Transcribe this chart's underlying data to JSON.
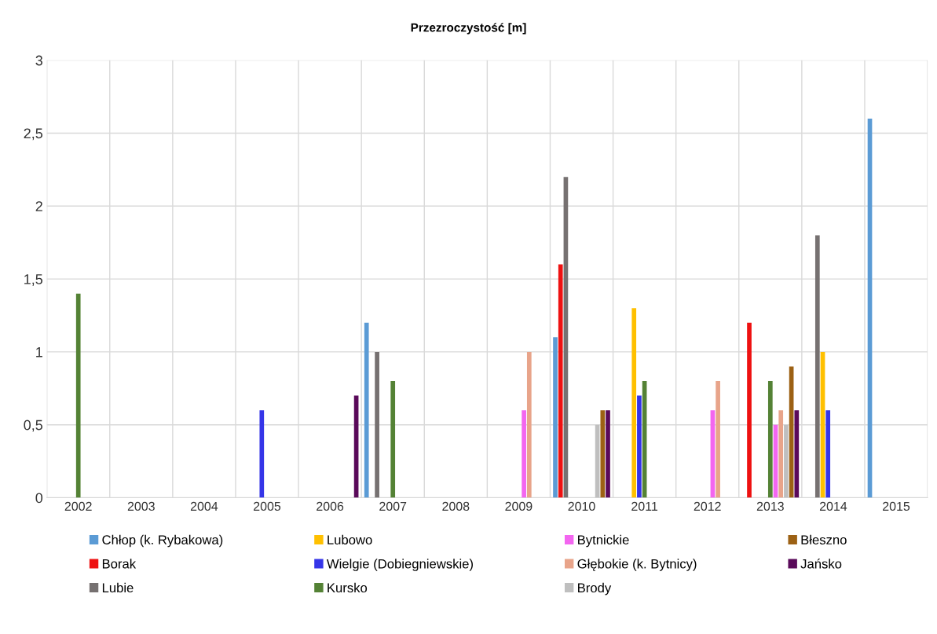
{
  "chart_data": {
    "type": "bar",
    "title": "Przezroczystość [m]",
    "categories": [
      "2002",
      "2003",
      "2004",
      "2005",
      "2006",
      "2007",
      "2008",
      "2009",
      "2010",
      "2011",
      "2012",
      "2013",
      "2014",
      "2015"
    ],
    "series": [
      {
        "name": "Chłop (k. Rybakowa)",
        "color": "#5b9bd5",
        "values": [
          null,
          null,
          null,
          null,
          null,
          1.2,
          null,
          null,
          1.1,
          null,
          null,
          null,
          null,
          2.6
        ]
      },
      {
        "name": "Borak",
        "color": "#ee1111",
        "values": [
          null,
          null,
          null,
          null,
          null,
          null,
          null,
          null,
          1.6,
          null,
          null,
          1.2,
          null,
          null
        ]
      },
      {
        "name": "Lubie",
        "color": "#767171",
        "values": [
          null,
          null,
          null,
          null,
          null,
          1.0,
          null,
          null,
          2.2,
          null,
          null,
          null,
          1.8,
          null
        ]
      },
      {
        "name": "Lubowo",
        "color": "#ffc000",
        "values": [
          null,
          null,
          null,
          null,
          null,
          null,
          null,
          null,
          null,
          1.3,
          null,
          null,
          1.0,
          null
        ]
      },
      {
        "name": "Wielgie (Dobiegniewskie)",
        "color": "#3535e8",
        "values": [
          null,
          null,
          null,
          0.6,
          null,
          null,
          null,
          null,
          null,
          0.7,
          null,
          null,
          0.6,
          null
        ]
      },
      {
        "name": "Kursko",
        "color": "#548235",
        "values": [
          1.4,
          null,
          null,
          null,
          null,
          0.8,
          null,
          null,
          null,
          0.8,
          null,
          0.8,
          null,
          null
        ]
      },
      {
        "name": "Bytnickie",
        "color": "#f366f0",
        "values": [
          null,
          null,
          null,
          null,
          null,
          null,
          null,
          0.6,
          null,
          null,
          0.6,
          0.5,
          null,
          null
        ]
      },
      {
        "name": "Głębokie (k. Bytnicy)",
        "color": "#e8a48a",
        "values": [
          null,
          null,
          null,
          null,
          null,
          null,
          null,
          1.0,
          null,
          null,
          0.8,
          0.6,
          null,
          null
        ]
      },
      {
        "name": "Brody",
        "color": "#bfbfbf",
        "values": [
          null,
          null,
          null,
          null,
          null,
          null,
          null,
          null,
          0.5,
          null,
          null,
          0.5,
          null,
          null
        ]
      },
      {
        "name": "Błeszno",
        "color": "#9c6114",
        "values": [
          null,
          null,
          null,
          null,
          null,
          null,
          null,
          null,
          0.6,
          null,
          null,
          0.9,
          null,
          null
        ]
      },
      {
        "name": "Jańsko",
        "color": "#5a0a5a",
        "values": [
          null,
          null,
          null,
          null,
          0.7,
          null,
          null,
          null,
          0.6,
          null,
          null,
          0.6,
          null,
          null
        ]
      }
    ],
    "ylim": [
      0,
      3
    ],
    "yticks": [
      0,
      {
        "value": 0.5,
        "label": "0,5"
      },
      1,
      {
        "value": 1.5,
        "label": "1,5"
      },
      2,
      {
        "value": 2.5,
        "label": "2,5"
      },
      3
    ],
    "grid": true,
    "legend": "bottom"
  }
}
